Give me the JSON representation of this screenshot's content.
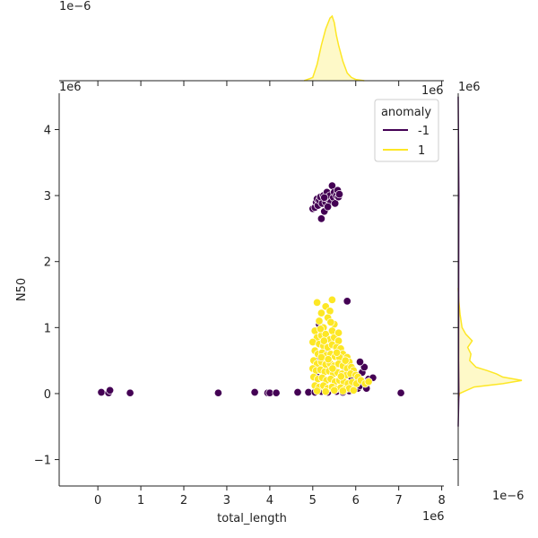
{
  "chart_data": {
    "type": "scatter",
    "title": "",
    "xlabel": "total_length",
    "ylabel": "N50",
    "x_offset_label": "1e6",
    "y_offset_label": "1e6",
    "marg_x_offset_label": "1e−6",
    "marg_y_offset_label": "1e−6",
    "xlim": [
      -0.9,
      8.05
    ],
    "ylim": [
      -1.4,
      4.55
    ],
    "x_ticks": [
      0,
      1,
      2,
      3,
      4,
      5,
      6,
      7,
      8
    ],
    "y_ticks": [
      -1,
      0,
      1,
      2,
      3,
      4
    ],
    "grid": false,
    "legend": {
      "title": "anomaly",
      "placement": "top-right",
      "entries": [
        {
          "label": "-1",
          "color": "#440154"
        },
        {
          "label": "1",
          "color": "#fde725"
        }
      ]
    },
    "series": [
      {
        "name": "-1",
        "color": "#440154",
        "points": [
          [
            0.08,
            0.02
          ],
          [
            0.25,
            0.01
          ],
          [
            0.28,
            0.05
          ],
          [
            0.75,
            0.01
          ],
          [
            2.8,
            0.01
          ],
          [
            3.65,
            0.02
          ],
          [
            3.95,
            0.01
          ],
          [
            4.0,
            0.01
          ],
          [
            4.15,
            0.01
          ],
          [
            4.65,
            0.02
          ],
          [
            4.9,
            0.02
          ],
          [
            7.05,
            0.01
          ],
          [
            5.05,
            0.02
          ],
          [
            5.2,
            0.03
          ],
          [
            5.35,
            0.02
          ],
          [
            5.55,
            0.03
          ],
          [
            5.7,
            0.02
          ],
          [
            5.85,
            0.04
          ],
          [
            5.95,
            0.06
          ],
          [
            6.05,
            0.08
          ],
          [
            6.1,
            0.12
          ],
          [
            6.2,
            0.18
          ],
          [
            6.3,
            0.22
          ],
          [
            6.4,
            0.24
          ],
          [
            6.25,
            0.08
          ],
          [
            6.15,
            0.32
          ],
          [
            6.2,
            0.4
          ],
          [
            6.1,
            0.48
          ],
          [
            6.0,
            0.18
          ],
          [
            5.9,
            0.25
          ],
          [
            5.1,
            0.25
          ],
          [
            5.05,
            0.5
          ],
          [
            5.15,
            1.05
          ],
          [
            5.8,
            1.4
          ],
          [
            5.75,
            0.35
          ],
          [
            5.3,
            0.6
          ],
          [
            5.0,
            2.8
          ],
          [
            5.05,
            2.82
          ],
          [
            5.08,
            2.9
          ],
          [
            5.1,
            2.95
          ],
          [
            5.12,
            2.85
          ],
          [
            5.15,
            2.93
          ],
          [
            5.18,
            2.98
          ],
          [
            5.2,
            2.65
          ],
          [
            5.22,
            2.88
          ],
          [
            5.25,
            3.0
          ],
          [
            5.27,
            2.76
          ],
          [
            5.3,
            2.9
          ],
          [
            5.33,
            3.05
          ],
          [
            5.35,
            2.95
          ],
          [
            5.38,
            2.98
          ],
          [
            5.4,
            3.0
          ],
          [
            5.42,
            2.9
          ],
          [
            5.45,
            3.15
          ],
          [
            5.48,
            2.97
          ],
          [
            5.5,
            3.05
          ],
          [
            5.52,
            2.88
          ],
          [
            5.55,
            3.0
          ],
          [
            5.58,
            3.08
          ],
          [
            5.6,
            2.98
          ],
          [
            5.62,
            3.02
          ],
          [
            5.27,
            2.97
          ],
          [
            5.35,
            2.83
          ]
        ]
      },
      {
        "name": "1",
        "color": "#fde725",
        "points": [
          [
            5.1,
            1.38
          ],
          [
            5.45,
            1.42
          ],
          [
            5.3,
            1.32
          ],
          [
            5.2,
            1.22
          ],
          [
            5.4,
            1.25
          ],
          [
            5.15,
            1.1
          ],
          [
            5.35,
            1.15
          ],
          [
            5.5,
            1.05
          ],
          [
            5.25,
            1.0
          ],
          [
            5.45,
            0.95
          ],
          [
            5.05,
            0.95
          ],
          [
            5.1,
            0.85
          ],
          [
            5.2,
            0.88
          ],
          [
            5.3,
            0.9
          ],
          [
            5.4,
            0.82
          ],
          [
            5.5,
            0.85
          ],
          [
            5.6,
            0.8
          ],
          [
            5.0,
            0.78
          ],
          [
            5.15,
            0.75
          ],
          [
            5.25,
            0.72
          ],
          [
            5.35,
            0.7
          ],
          [
            5.45,
            0.74
          ],
          [
            5.55,
            0.7
          ],
          [
            5.65,
            0.68
          ],
          [
            5.7,
            0.6
          ],
          [
            5.05,
            0.65
          ],
          [
            5.12,
            0.6
          ],
          [
            5.22,
            0.62
          ],
          [
            5.32,
            0.58
          ],
          [
            5.42,
            0.6
          ],
          [
            5.52,
            0.56
          ],
          [
            5.62,
            0.55
          ],
          [
            5.8,
            0.55
          ],
          [
            5.85,
            0.48
          ],
          [
            5.02,
            0.5
          ],
          [
            5.1,
            0.45
          ],
          [
            5.2,
            0.48
          ],
          [
            5.3,
            0.44
          ],
          [
            5.4,
            0.46
          ],
          [
            5.5,
            0.42
          ],
          [
            5.6,
            0.45
          ],
          [
            5.7,
            0.42
          ],
          [
            5.8,
            0.38
          ],
          [
            5.9,
            0.4
          ],
          [
            5.95,
            0.35
          ],
          [
            5.0,
            0.38
          ],
          [
            5.08,
            0.35
          ],
          [
            5.18,
            0.36
          ],
          [
            5.28,
            0.33
          ],
          [
            5.38,
            0.34
          ],
          [
            5.48,
            0.3
          ],
          [
            5.58,
            0.32
          ],
          [
            5.68,
            0.3
          ],
          [
            5.78,
            0.28
          ],
          [
            5.88,
            0.3
          ],
          [
            6.0,
            0.28
          ],
          [
            6.05,
            0.25
          ],
          [
            5.02,
            0.25
          ],
          [
            5.12,
            0.22
          ],
          [
            5.22,
            0.24
          ],
          [
            5.32,
            0.2
          ],
          [
            5.42,
            0.22
          ],
          [
            5.52,
            0.18
          ],
          [
            5.62,
            0.2
          ],
          [
            5.72,
            0.18
          ],
          [
            5.82,
            0.15
          ],
          [
            5.92,
            0.17
          ],
          [
            6.02,
            0.15
          ],
          [
            6.12,
            0.2
          ],
          [
            6.22,
            0.15
          ],
          [
            6.3,
            0.18
          ],
          [
            5.05,
            0.12
          ],
          [
            5.15,
            0.1
          ],
          [
            5.25,
            0.12
          ],
          [
            5.35,
            0.08
          ],
          [
            5.45,
            0.1
          ],
          [
            5.55,
            0.07
          ],
          [
            5.65,
            0.09
          ],
          [
            5.75,
            0.06
          ],
          [
            5.85,
            0.08
          ],
          [
            5.95,
            0.05
          ],
          [
            5.1,
            0.04
          ],
          [
            5.3,
            0.03
          ],
          [
            5.5,
            0.05
          ],
          [
            5.7,
            0.04
          ],
          [
            5.2,
            0.55
          ],
          [
            5.36,
            0.52
          ],
          [
            5.56,
            0.62
          ],
          [
            5.46,
            0.38
          ],
          [
            5.66,
            0.26
          ],
          [
            5.76,
            0.5
          ],
          [
            5.26,
            0.8
          ],
          [
            5.42,
            1.08
          ],
          [
            5.18,
            0.98
          ],
          [
            5.6,
            0.92
          ]
        ]
      }
    ],
    "top_marginal_density": [
      [
        4.8,
        0.0
      ],
      [
        5.0,
        0.05
      ],
      [
        5.1,
        0.25
      ],
      [
        5.2,
        0.55
      ],
      [
        5.3,
        0.8
      ],
      [
        5.4,
        0.97
      ],
      [
        5.45,
        1.0
      ],
      [
        5.5,
        0.9
      ],
      [
        5.55,
        0.7
      ],
      [
        5.6,
        0.55
      ],
      [
        5.7,
        0.3
      ],
      [
        5.8,
        0.12
      ],
      [
        5.9,
        0.05
      ],
      [
        6.0,
        0.02
      ],
      [
        6.2,
        0.0
      ]
    ],
    "right_marginal_density": [
      [
        -0.1,
        0.0
      ],
      [
        0.0,
        0.02
      ],
      [
        0.1,
        0.25
      ],
      [
        0.15,
        0.7
      ],
      [
        0.2,
        1.0
      ],
      [
        0.25,
        0.7
      ],
      [
        0.3,
        0.6
      ],
      [
        0.35,
        0.45
      ],
      [
        0.4,
        0.28
      ],
      [
        0.5,
        0.18
      ],
      [
        0.6,
        0.2
      ],
      [
        0.7,
        0.15
      ],
      [
        0.8,
        0.22
      ],
      [
        0.9,
        0.12
      ],
      [
        1.0,
        0.06
      ],
      [
        1.2,
        0.03
      ],
      [
        1.4,
        0.01
      ],
      [
        1.6,
        0.0
      ]
    ],
    "right_marginal_anomaly_density": [
      [
        -0.5,
        0.0
      ],
      [
        0.0,
        0.01
      ],
      [
        0.5,
        0.005
      ],
      [
        2.8,
        0.008
      ],
      [
        3.0,
        0.01
      ],
      [
        4.5,
        0.0
      ]
    ]
  }
}
